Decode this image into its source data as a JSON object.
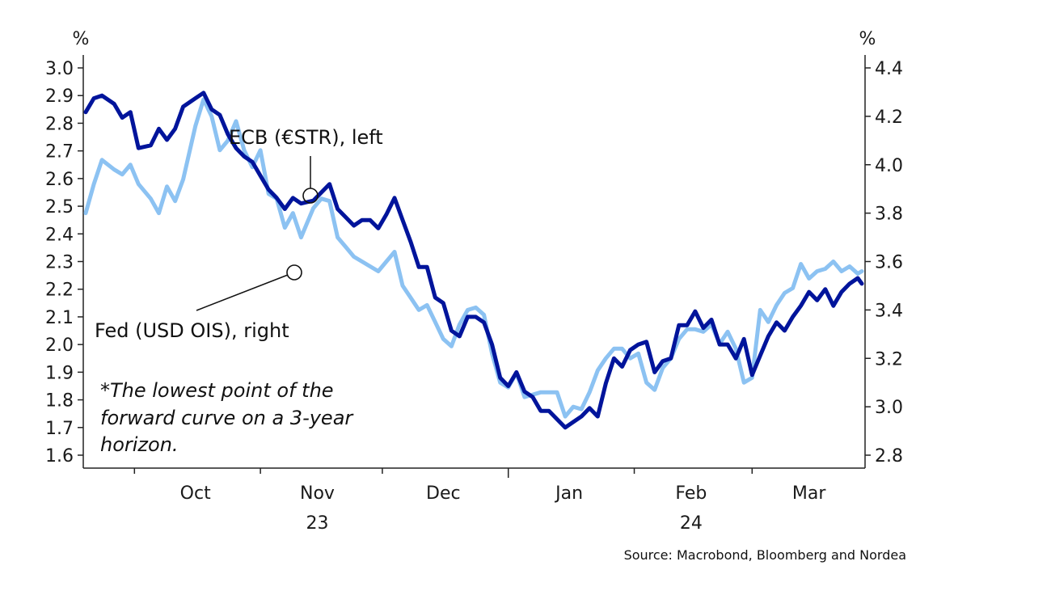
{
  "chart_data": {
    "type": "line",
    "left_axis": {
      "unit": "%",
      "range": [
        1.6,
        3.0
      ],
      "ticks": [
        "3.0",
        "2.9",
        "2.8",
        "2.7",
        "2.6",
        "2.5",
        "2.4",
        "2.3",
        "2.2",
        "2.1",
        "2.0",
        "1.9",
        "1.8",
        "1.7",
        "1.6"
      ]
    },
    "right_axis": {
      "unit": "%",
      "range": [
        2.8,
        4.4
      ],
      "ticks": [
        "4.4",
        "4.2",
        "4.0",
        "3.8",
        "3.6",
        "3.4",
        "3.2",
        "3.0",
        "2.8"
      ]
    },
    "x_months": [
      "Oct",
      "Nov",
      "Dec",
      "Jan",
      "Feb",
      "Mar"
    ],
    "x_years": [
      "23",
      "24"
    ],
    "x_range": [
      "2023-09-19",
      "2024-03-28"
    ],
    "grid": false,
    "series": [
      {
        "name": "ECB (€STR), left",
        "axis": "left",
        "color": "#00149b",
        "points": [
          [
            "2023-09-19",
            2.84
          ],
          [
            "2023-09-21",
            2.89
          ],
          [
            "2023-09-23",
            2.9
          ],
          [
            "2023-09-26",
            2.87
          ],
          [
            "2023-09-28",
            2.82
          ],
          [
            "2023-09-30",
            2.84
          ],
          [
            "2023-10-02",
            2.71
          ],
          [
            "2023-10-05",
            2.72
          ],
          [
            "2023-10-07",
            2.78
          ],
          [
            "2023-10-09",
            2.74
          ],
          [
            "2023-10-11",
            2.78
          ],
          [
            "2023-10-13",
            2.86
          ],
          [
            "2023-10-16",
            2.89
          ],
          [
            "2023-10-18",
            2.91
          ],
          [
            "2023-10-20",
            2.85
          ],
          [
            "2023-10-22",
            2.83
          ],
          [
            "2023-10-24",
            2.76
          ],
          [
            "2023-10-26",
            2.71
          ],
          [
            "2023-10-28",
            2.68
          ],
          [
            "2023-10-30",
            2.66
          ],
          [
            "2023-11-01",
            2.61
          ],
          [
            "2023-11-03",
            2.56
          ],
          [
            "2023-11-05",
            2.53
          ],
          [
            "2023-11-07",
            2.49
          ],
          [
            "2023-11-09",
            2.53
          ],
          [
            "2023-11-11",
            2.51
          ],
          [
            "2023-11-14",
            2.52
          ],
          [
            "2023-11-16",
            2.55
          ],
          [
            "2023-11-18",
            2.58
          ],
          [
            "2023-11-20",
            2.49
          ],
          [
            "2023-11-22",
            2.46
          ],
          [
            "2023-11-24",
            2.43
          ],
          [
            "2023-11-26",
            2.45
          ],
          [
            "2023-11-28",
            2.45
          ],
          [
            "2023-11-30",
            2.42
          ],
          [
            "2023-12-02",
            2.47
          ],
          [
            "2023-12-04",
            2.53
          ],
          [
            "2023-12-06",
            2.45
          ],
          [
            "2023-12-08",
            2.37
          ],
          [
            "2023-12-10",
            2.28
          ],
          [
            "2023-12-12",
            2.28
          ],
          [
            "2023-12-14",
            2.17
          ],
          [
            "2023-12-16",
            2.15
          ],
          [
            "2023-12-18",
            2.05
          ],
          [
            "2023-12-20",
            2.03
          ],
          [
            "2023-12-22",
            2.1
          ],
          [
            "2023-12-24",
            2.1
          ],
          [
            "2023-12-26",
            2.08
          ],
          [
            "2023-12-28",
            2.0
          ],
          [
            "2023-12-30",
            1.88
          ],
          [
            "2024-01-01",
            1.85
          ],
          [
            "2024-01-03",
            1.9
          ],
          [
            "2024-01-05",
            1.83
          ],
          [
            "2024-01-07",
            1.81
          ],
          [
            "2024-01-09",
            1.76
          ],
          [
            "2024-01-11",
            1.76
          ],
          [
            "2024-01-13",
            1.73
          ],
          [
            "2024-01-15",
            1.7
          ],
          [
            "2024-01-17",
            1.72
          ],
          [
            "2024-01-19",
            1.74
          ],
          [
            "2024-01-21",
            1.77
          ],
          [
            "2024-01-23",
            1.74
          ],
          [
            "2024-01-25",
            1.86
          ],
          [
            "2024-01-27",
            1.95
          ],
          [
            "2024-01-29",
            1.92
          ],
          [
            "2024-01-31",
            1.98
          ],
          [
            "2024-02-02",
            2.0
          ],
          [
            "2024-02-04",
            2.01
          ],
          [
            "2024-02-06",
            1.9
          ],
          [
            "2024-02-08",
            1.94
          ],
          [
            "2024-02-10",
            1.95
          ],
          [
            "2024-02-12",
            2.07
          ],
          [
            "2024-02-14",
            2.07
          ],
          [
            "2024-02-16",
            2.12
          ],
          [
            "2024-02-18",
            2.06
          ],
          [
            "2024-02-20",
            2.09
          ],
          [
            "2024-02-22",
            2.0
          ],
          [
            "2024-02-24",
            2.0
          ],
          [
            "2024-02-26",
            1.95
          ],
          [
            "2024-02-28",
            2.02
          ],
          [
            "2024-03-01",
            1.89
          ],
          [
            "2024-03-03",
            1.96
          ],
          [
            "2024-03-05",
            2.03
          ],
          [
            "2024-03-07",
            2.08
          ],
          [
            "2024-03-09",
            2.05
          ],
          [
            "2024-03-11",
            2.1
          ],
          [
            "2024-03-13",
            2.14
          ],
          [
            "2024-03-15",
            2.19
          ],
          [
            "2024-03-17",
            2.16
          ],
          [
            "2024-03-19",
            2.2
          ],
          [
            "2024-03-21",
            2.14
          ],
          [
            "2024-03-23",
            2.19
          ],
          [
            "2024-03-25",
            2.22
          ],
          [
            "2024-03-27",
            2.24
          ],
          [
            "2024-03-28",
            2.22
          ]
        ]
      },
      {
        "name": "Fed (USD OIS), right",
        "axis": "right",
        "color": "#8cc2f2",
        "points": [
          [
            "2023-09-19",
            3.8
          ],
          [
            "2023-09-21",
            3.92
          ],
          [
            "2023-09-23",
            4.02
          ],
          [
            "2023-09-26",
            3.98
          ],
          [
            "2023-09-28",
            3.96
          ],
          [
            "2023-09-30",
            4.0
          ],
          [
            "2023-10-02",
            3.92
          ],
          [
            "2023-10-05",
            3.86
          ],
          [
            "2023-10-07",
            3.8
          ],
          [
            "2023-10-09",
            3.91
          ],
          [
            "2023-10-11",
            3.85
          ],
          [
            "2023-10-13",
            3.94
          ],
          [
            "2023-10-16",
            4.16
          ],
          [
            "2023-10-18",
            4.27
          ],
          [
            "2023-10-20",
            4.2
          ],
          [
            "2023-10-22",
            4.06
          ],
          [
            "2023-10-24",
            4.1
          ],
          [
            "2023-10-26",
            4.18
          ],
          [
            "2023-10-28",
            4.06
          ],
          [
            "2023-10-30",
            3.99
          ],
          [
            "2023-11-01",
            4.06
          ],
          [
            "2023-11-03",
            3.88
          ],
          [
            "2023-11-05",
            3.86
          ],
          [
            "2023-11-07",
            3.74
          ],
          [
            "2023-11-09",
            3.8
          ],
          [
            "2023-11-11",
            3.7
          ],
          [
            "2023-11-14",
            3.82
          ],
          [
            "2023-11-16",
            3.86
          ],
          [
            "2023-11-18",
            3.85
          ],
          [
            "2023-11-20",
            3.7
          ],
          [
            "2023-11-22",
            3.66
          ],
          [
            "2023-11-24",
            3.62
          ],
          [
            "2023-11-26",
            3.6
          ],
          [
            "2023-11-28",
            3.58
          ],
          [
            "2023-11-30",
            3.56
          ],
          [
            "2023-12-02",
            3.6
          ],
          [
            "2023-12-04",
            3.64
          ],
          [
            "2023-12-06",
            3.5
          ],
          [
            "2023-12-08",
            3.45
          ],
          [
            "2023-12-10",
            3.4
          ],
          [
            "2023-12-12",
            3.42
          ],
          [
            "2023-12-14",
            3.35
          ],
          [
            "2023-12-16",
            3.28
          ],
          [
            "2023-12-18",
            3.25
          ],
          [
            "2023-12-20",
            3.34
          ],
          [
            "2023-12-22",
            3.4
          ],
          [
            "2023-12-24",
            3.41
          ],
          [
            "2023-12-26",
            3.38
          ],
          [
            "2023-12-28",
            3.22
          ],
          [
            "2023-12-30",
            3.1
          ],
          [
            "2024-01-01",
            3.08
          ],
          [
            "2024-01-03",
            3.14
          ],
          [
            "2024-01-05",
            3.04
          ],
          [
            "2024-01-07",
            3.05
          ],
          [
            "2024-01-09",
            3.06
          ],
          [
            "2024-01-11",
            3.06
          ],
          [
            "2024-01-13",
            3.06
          ],
          [
            "2024-01-15",
            2.96
          ],
          [
            "2024-01-17",
            3.0
          ],
          [
            "2024-01-19",
            2.99
          ],
          [
            "2024-01-21",
            3.06
          ],
          [
            "2024-01-23",
            3.15
          ],
          [
            "2024-01-25",
            3.2
          ],
          [
            "2024-01-27",
            3.24
          ],
          [
            "2024-01-29",
            3.24
          ],
          [
            "2024-01-31",
            3.2
          ],
          [
            "2024-02-02",
            3.22
          ],
          [
            "2024-02-04",
            3.1
          ],
          [
            "2024-02-06",
            3.07
          ],
          [
            "2024-02-08",
            3.16
          ],
          [
            "2024-02-10",
            3.2
          ],
          [
            "2024-02-12",
            3.28
          ],
          [
            "2024-02-14",
            3.32
          ],
          [
            "2024-02-16",
            3.32
          ],
          [
            "2024-02-18",
            3.31
          ],
          [
            "2024-02-20",
            3.34
          ],
          [
            "2024-02-22",
            3.26
          ],
          [
            "2024-02-24",
            3.31
          ],
          [
            "2024-02-26",
            3.24
          ],
          [
            "2024-02-28",
            3.1
          ],
          [
            "2024-03-01",
            3.12
          ],
          [
            "2024-03-03",
            3.4
          ],
          [
            "2024-03-05",
            3.35
          ],
          [
            "2024-03-07",
            3.42
          ],
          [
            "2024-03-09",
            3.47
          ],
          [
            "2024-03-11",
            3.49
          ],
          [
            "2024-03-13",
            3.59
          ],
          [
            "2024-03-15",
            3.53
          ],
          [
            "2024-03-17",
            3.56
          ],
          [
            "2024-03-19",
            3.57
          ],
          [
            "2024-03-21",
            3.6
          ],
          [
            "2024-03-23",
            3.56
          ],
          [
            "2024-03-25",
            3.58
          ],
          [
            "2024-03-27",
            3.55
          ],
          [
            "2024-03-28",
            3.56
          ]
        ]
      }
    ],
    "annotations": {
      "ecb": "ECB (€STR), left",
      "fed": "Fed (USD OIS), right",
      "footnote": [
        "*The lowest point of the",
        "forward curve on a 3-year",
        "horizon."
      ]
    },
    "source": "Source: Macrobond, Bloomberg and Nordea"
  }
}
